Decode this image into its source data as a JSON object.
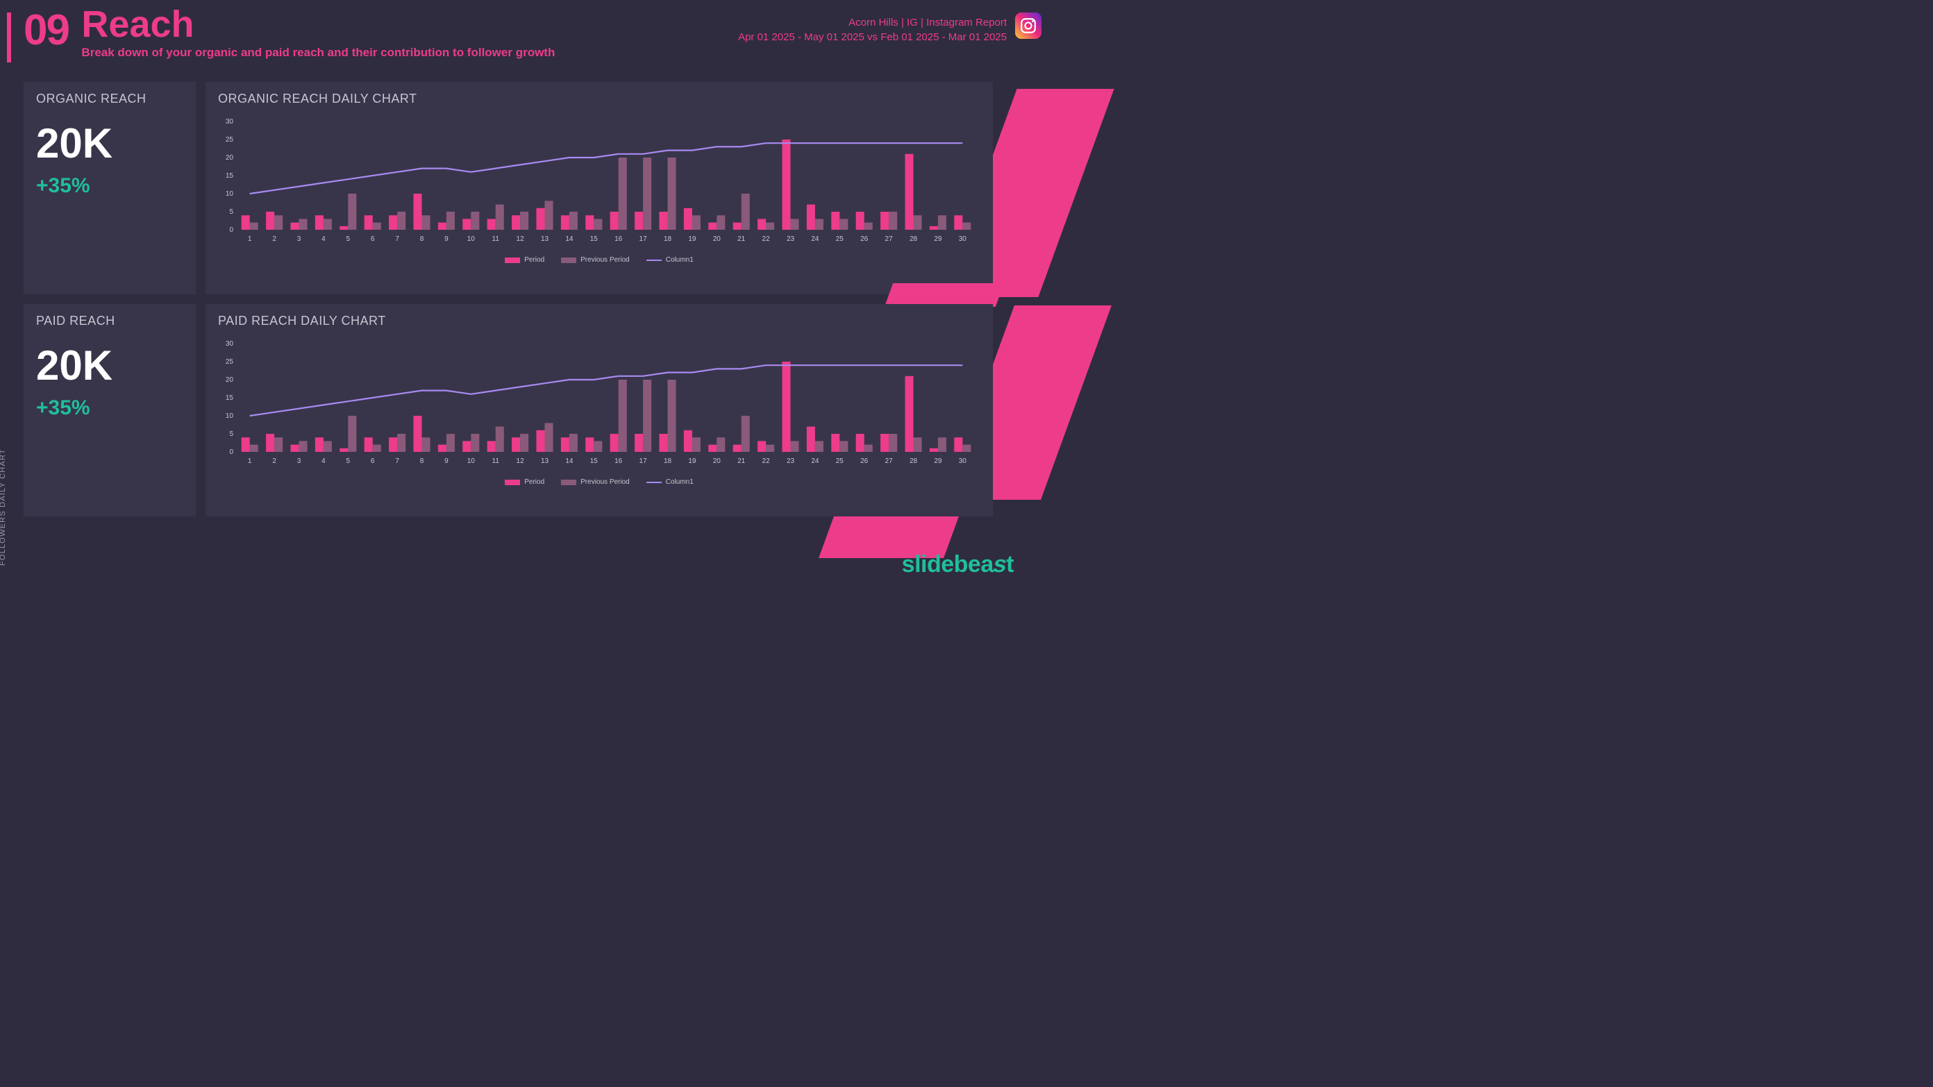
{
  "page": {
    "number": "09",
    "title": "Reach",
    "subtitle": "Break down of your organic and paid reach and their contribution to follower growth",
    "accent_color": "#ed3c8a",
    "background_color": "#2f2c3f",
    "panel_background": "#38354a"
  },
  "meta": {
    "line1": "Acorn Hills | IG | Instagram Report",
    "line2": "Apr 01 2025 - May 01 2025 vs Feb 01 2025 - Mar 01 2025"
  },
  "side_label": "FOLLOWERS DAILY CHART",
  "brand": "slidebeast",
  "kpis": {
    "organic": {
      "title": "ORGANIC REACH",
      "value": "20K",
      "delta": "+35%",
      "delta_color": "#1fbf9c"
    },
    "paid": {
      "title": "PAID REACH",
      "value": "20K",
      "delta": "+35%",
      "delta_color": "#1fbf9c"
    }
  },
  "charts": {
    "organic": {
      "title": "ORGANIC REACH DAILY CHART",
      "type": "bar+line",
      "ylim": [
        0,
        30
      ],
      "ytick_step": 5,
      "x_labels": [
        "1",
        "2",
        "3",
        "4",
        "5",
        "6",
        "7",
        "8",
        "9",
        "10",
        "11",
        "12",
        "13",
        "14",
        "15",
        "16",
        "17",
        "18",
        "19",
        "20",
        "21",
        "22",
        "23",
        "24",
        "25",
        "26",
        "27",
        "28",
        "29",
        "30"
      ],
      "period": [
        4,
        5,
        2,
        4,
        1,
        4,
        4,
        10,
        2,
        3,
        3,
        4,
        6,
        4,
        4,
        5,
        5,
        5,
        6,
        2,
        2,
        3,
        25,
        7,
        5,
        5,
        5,
        21,
        1,
        4
      ],
      "previous_period": [
        2,
        4,
        3,
        3,
        10,
        2,
        5,
        4,
        5,
        5,
        7,
        5,
        8,
        5,
        3,
        20,
        20,
        20,
        4,
        4,
        10,
        2,
        3,
        3,
        3,
        2,
        5,
        4,
        4,
        2
      ],
      "trend": [
        10,
        11,
        12,
        13,
        14,
        15,
        16,
        17,
        17,
        16,
        17,
        18,
        19,
        20,
        20,
        21,
        21,
        22,
        22,
        23,
        23,
        24,
        24,
        24,
        24,
        24,
        24,
        24,
        24,
        24
      ],
      "colors": {
        "period": "#ed3c8a",
        "previous": "#8a5a7a",
        "trend": "#a98af2",
        "tick_text": "#c8c4d2"
      },
      "bar_width": 0.34,
      "legend": [
        {
          "label": "Period",
          "color": "#ed3c8a",
          "type": "bar"
        },
        {
          "label": "Previous Period",
          "color": "#8a5a7a",
          "type": "bar"
        },
        {
          "label": "Column1",
          "color": "#a98af2",
          "type": "line"
        }
      ]
    },
    "paid": {
      "title": "PAID REACH DAILY CHART",
      "type": "bar+line",
      "ylim": [
        0,
        30
      ],
      "ytick_step": 5,
      "x_labels": [
        "1",
        "2",
        "3",
        "4",
        "5",
        "6",
        "7",
        "8",
        "9",
        "10",
        "11",
        "12",
        "13",
        "14",
        "15",
        "16",
        "17",
        "18",
        "19",
        "20",
        "21",
        "22",
        "23",
        "24",
        "25",
        "26",
        "27",
        "28",
        "29",
        "30"
      ],
      "period": [
        4,
        5,
        2,
        4,
        1,
        4,
        4,
        10,
        2,
        3,
        3,
        4,
        6,
        4,
        4,
        5,
        5,
        5,
        6,
        2,
        2,
        3,
        25,
        7,
        5,
        5,
        5,
        21,
        1,
        4
      ],
      "previous_period": [
        2,
        4,
        3,
        3,
        10,
        2,
        5,
        4,
        5,
        5,
        7,
        5,
        8,
        5,
        3,
        20,
        20,
        20,
        4,
        4,
        10,
        2,
        3,
        3,
        3,
        2,
        5,
        4,
        4,
        2
      ],
      "trend": [
        10,
        11,
        12,
        13,
        14,
        15,
        16,
        17,
        17,
        16,
        17,
        18,
        19,
        20,
        20,
        21,
        21,
        22,
        22,
        23,
        23,
        24,
        24,
        24,
        24,
        24,
        24,
        24,
        24,
        24
      ],
      "colors": {
        "period": "#ed3c8a",
        "previous": "#8a5a7a",
        "trend": "#a98af2",
        "tick_text": "#c8c4d2"
      },
      "bar_width": 0.34,
      "legend": [
        {
          "label": "Period",
          "color": "#ed3c8a",
          "type": "bar"
        },
        {
          "label": "Previous Period",
          "color": "#8a5a7a",
          "type": "bar"
        },
        {
          "label": "Column1",
          "color": "#a98af2",
          "type": "line"
        }
      ]
    }
  }
}
